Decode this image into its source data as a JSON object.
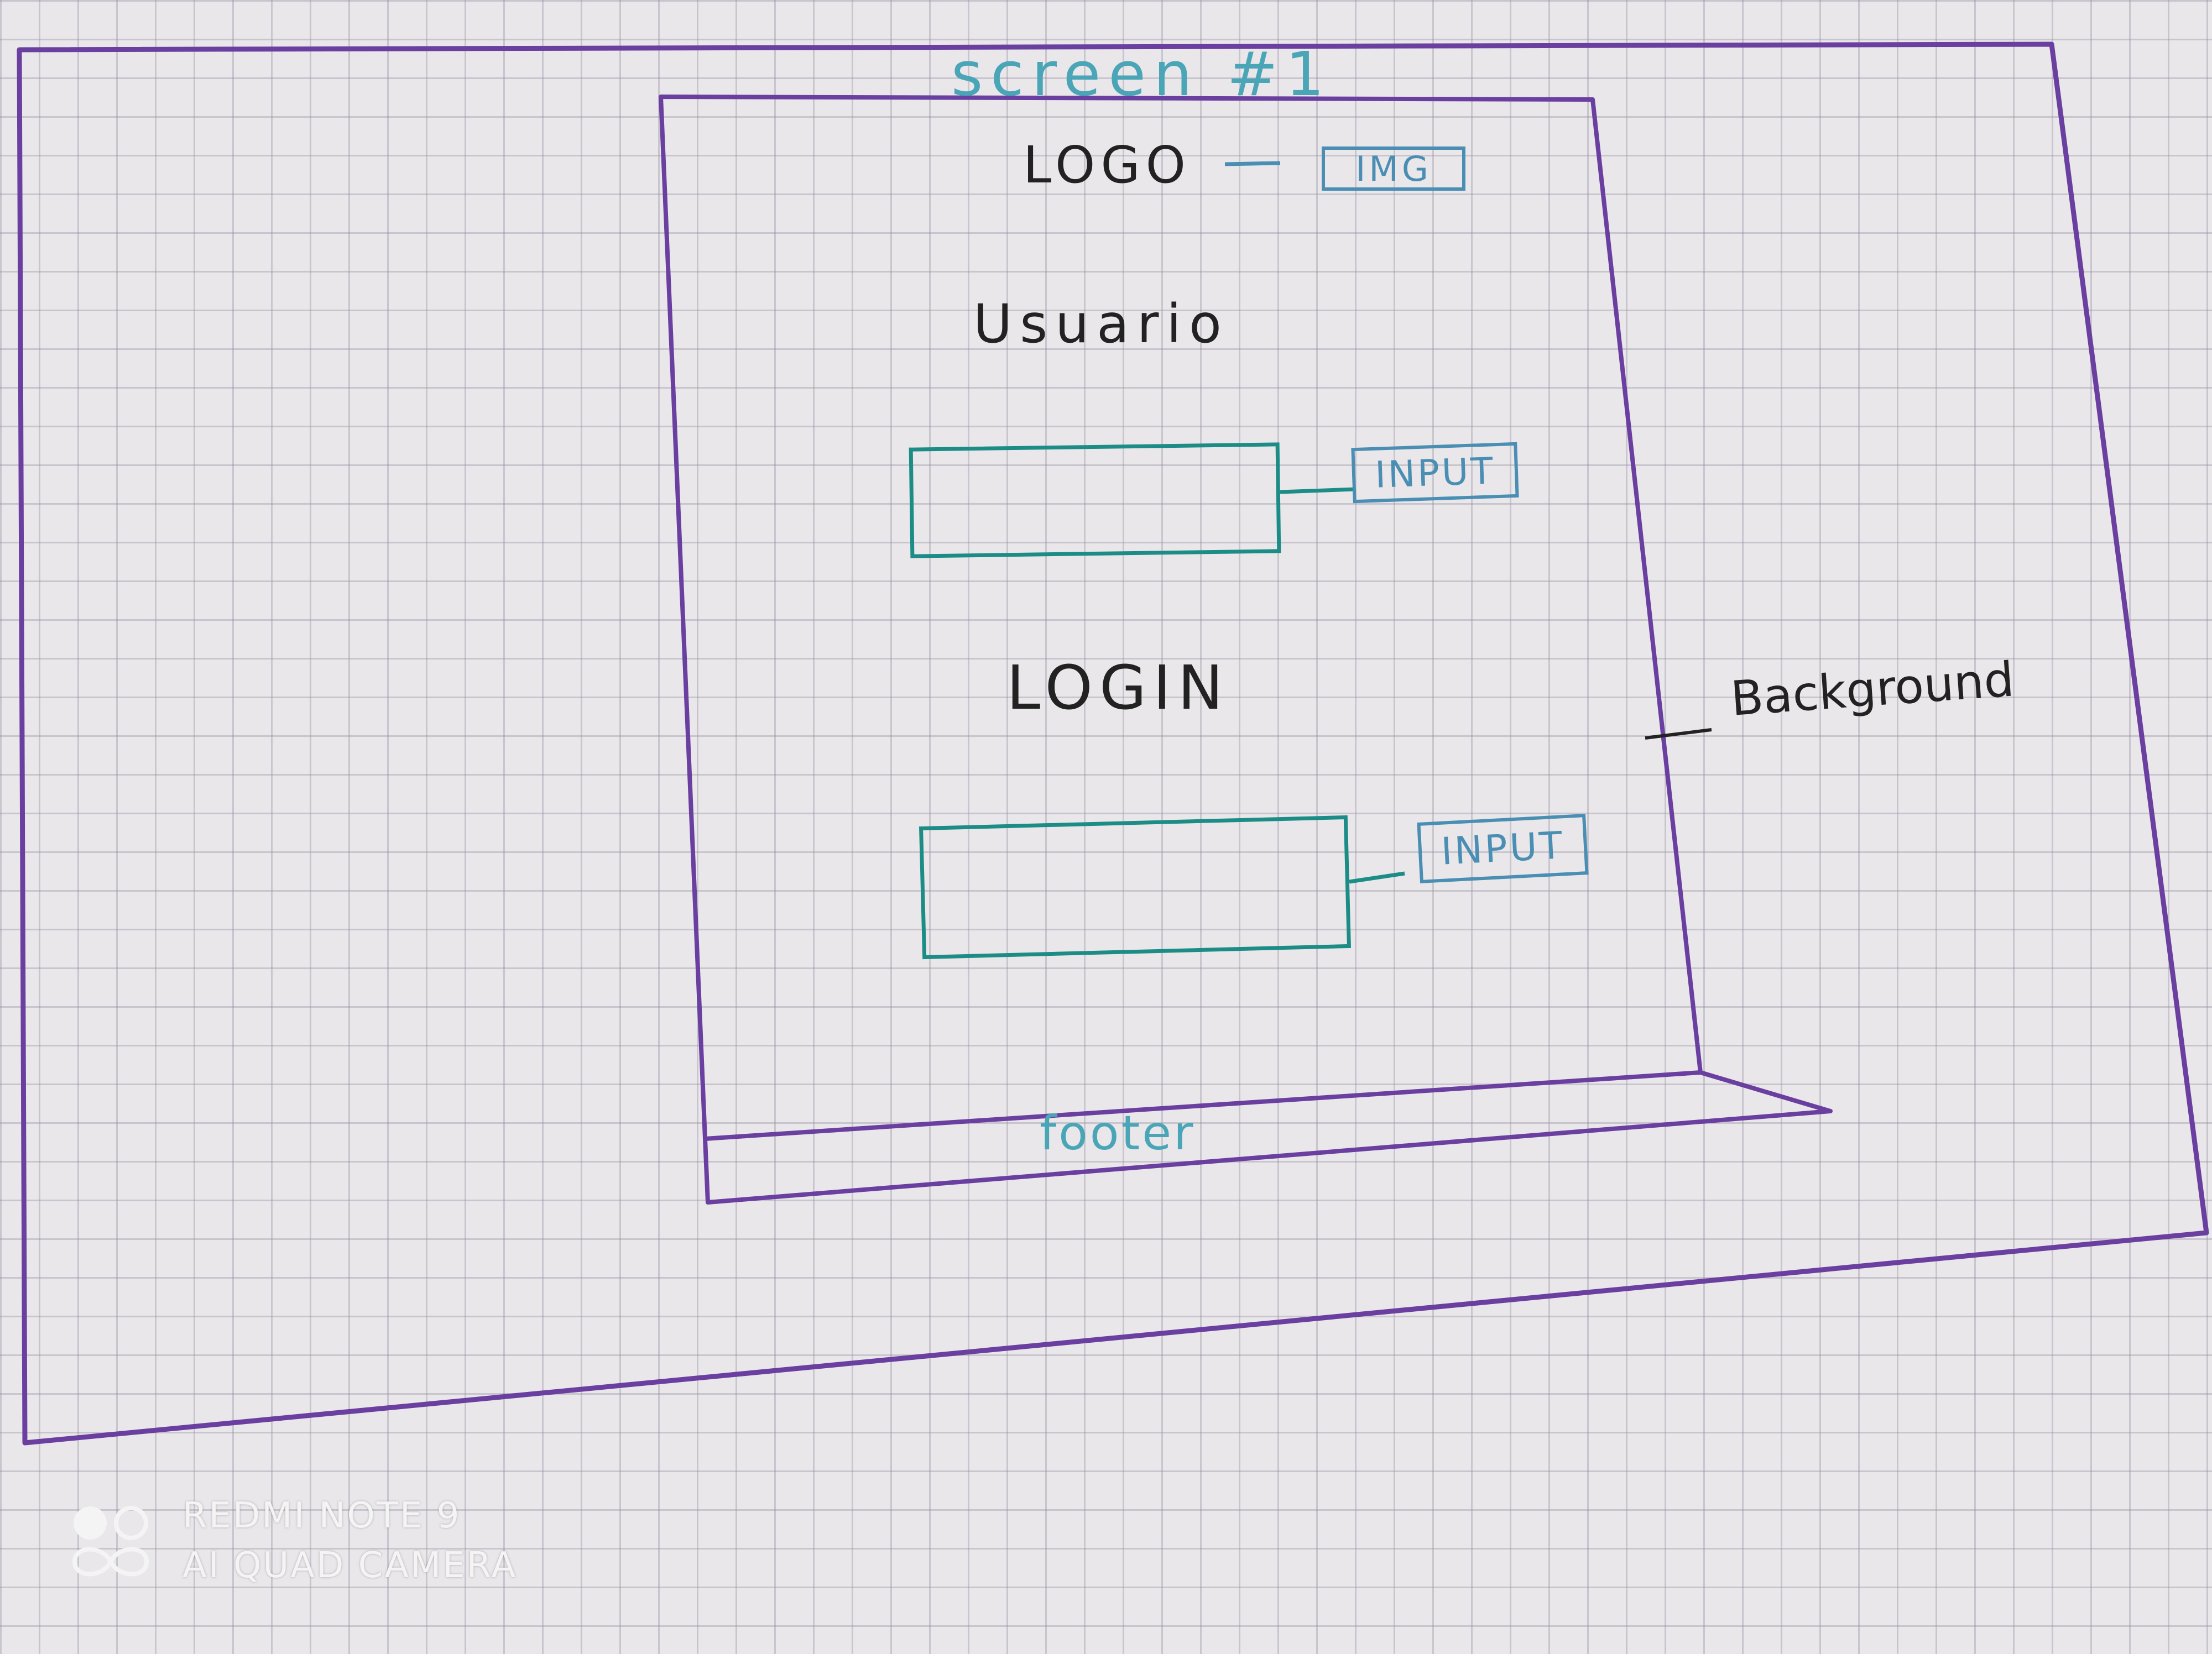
{
  "sketch": {
    "title": "screen #1",
    "logo_text": "LOGO",
    "img_tag": "IMG",
    "usuario_label": "Usuario",
    "input_tag_1": "INPUT",
    "login_label": "LOGIN",
    "input_tag_2": "INPUT",
    "background_label": "Background",
    "footer_label": "footer",
    "colors": {
      "outline": "#6a3fa0",
      "input_border": "#1c8c86",
      "tag": "#4a8fb3",
      "title": "#4aa6b7",
      "ink": "#222222"
    }
  },
  "watermark": {
    "line1": "REDMI NOTE 9",
    "line2": "AI QUAD CAMERA"
  }
}
